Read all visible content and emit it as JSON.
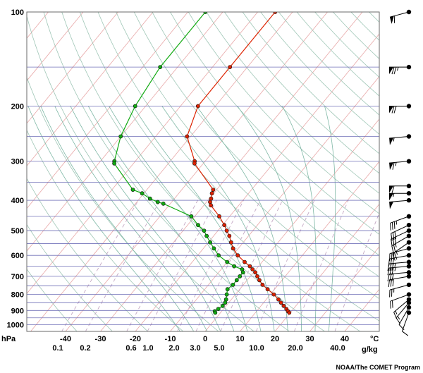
{
  "chart_data": {
    "type": "line",
    "title": "",
    "pressure_unit": "hPa",
    "temperature_unit": "°C",
    "mixing_ratio_unit": "g/kg",
    "credit": "NOAA/The COMET Program",
    "pressure_ticks": [
      100,
      200,
      300,
      400,
      500,
      600,
      700,
      800,
      900,
      1000
    ],
    "isobars": [
      100,
      150,
      200,
      250,
      300,
      350,
      400,
      450,
      500,
      550,
      600,
      650,
      700,
      750,
      800,
      850,
      900,
      950,
      1000
    ],
    "temperature_ticks": [
      -40,
      -30,
      -20,
      -10,
      0,
      10,
      20,
      30,
      40
    ],
    "mixing_ratio_ticks": [
      "0.1",
      "0.2",
      "0.6",
      "1.0",
      "2.0",
      "3.0",
      "5.0",
      "10.0",
      "20.0",
      "40.0"
    ],
    "colors": {
      "temperature": "#dd2200",
      "dewpoint": "#11aa11",
      "isobar": "#7070b8",
      "isotherm": "#e8a8a8",
      "dry_adiabat": "#9fc6b6",
      "moist_adiabat": "#7fb8a6",
      "mixing_ratio": "#c4a8c4"
    },
    "series": [
      {
        "name": "",
        "role": "temperature",
        "points": [
          {
            "p": 100,
            "t": -55
          },
          {
            "p": 150,
            "t": -55
          },
          {
            "p": 200,
            "t": -55
          },
          {
            "p": 250,
            "t": -51
          },
          {
            "p": 300,
            "t": -43
          },
          {
            "p": 305,
            "t": -42.5
          },
          {
            "p": 370,
            "t": -31
          },
          {
            "p": 380,
            "t": -30.5
          },
          {
            "p": 395,
            "t": -29.5
          },
          {
            "p": 405,
            "t": -29
          },
          {
            "p": 415,
            "t": -28
          },
          {
            "p": 450,
            "t": -23
          },
          {
            "p": 480,
            "t": -19.5
          },
          {
            "p": 500,
            "t": -17.5
          },
          {
            "p": 520,
            "t": -15.5
          },
          {
            "p": 545,
            "t": -13.5
          },
          {
            "p": 570,
            "t": -11.5
          },
          {
            "p": 600,
            "t": -8.5
          },
          {
            "p": 630,
            "t": -5
          },
          {
            "p": 650,
            "t": -2.5
          },
          {
            "p": 665,
            "t": -1
          },
          {
            "p": 680,
            "t": 0.5
          },
          {
            "p": 700,
            "t": 2
          },
          {
            "p": 720,
            "t": 3.5
          },
          {
            "p": 745,
            "t": 5.5
          },
          {
            "p": 770,
            "t": 8
          },
          {
            "p": 800,
            "t": 11
          },
          {
            "p": 830,
            "t": 13.5
          },
          {
            "p": 850,
            "t": 15
          },
          {
            "p": 870,
            "t": 16.5
          },
          {
            "p": 890,
            "t": 18
          },
          {
            "p": 905,
            "t": 19
          },
          {
            "p": 915,
            "t": 19.7
          }
        ]
      },
      {
        "name": "",
        "role": "dewpoint",
        "points": [
          {
            "p": 100,
            "t": -75
          },
          {
            "p": 150,
            "t": -75
          },
          {
            "p": 200,
            "t": -73
          },
          {
            "p": 250,
            "t": -70
          },
          {
            "p": 300,
            "t": -66
          },
          {
            "p": 305,
            "t": -65.5
          },
          {
            "p": 370,
            "t": -54
          },
          {
            "p": 380,
            "t": -50.5
          },
          {
            "p": 395,
            "t": -47
          },
          {
            "p": 405,
            "t": -44
          },
          {
            "p": 410,
            "t": -42
          },
          {
            "p": 450,
            "t": -31
          },
          {
            "p": 480,
            "t": -27
          },
          {
            "p": 500,
            "t": -24
          },
          {
            "p": 520,
            "t": -22
          },
          {
            "p": 545,
            "t": -19.5
          },
          {
            "p": 570,
            "t": -17
          },
          {
            "p": 600,
            "t": -14
          },
          {
            "p": 630,
            "t": -10
          },
          {
            "p": 650,
            "t": -7
          },
          {
            "p": 665,
            "t": -4
          },
          {
            "p": 680,
            "t": -3
          },
          {
            "p": 700,
            "t": -3
          },
          {
            "p": 720,
            "t": -3
          },
          {
            "p": 745,
            "t": -3
          },
          {
            "p": 770,
            "t": -3.5
          },
          {
            "p": 800,
            "t": -2.5
          },
          {
            "p": 830,
            "t": -1.5
          },
          {
            "p": 850,
            "t": -1
          },
          {
            "p": 870,
            "t": -1
          },
          {
            "p": 890,
            "t": -1.5
          },
          {
            "p": 905,
            "t": -2
          },
          {
            "p": 915,
            "t": -1.5
          }
        ]
      }
    ],
    "wind_barbs": [
      {
        "p": 100,
        "dir": 255,
        "kt": 60
      },
      {
        "p": 150,
        "dir": 270,
        "kt": 75
      },
      {
        "p": 200,
        "dir": 270,
        "kt": 70
      },
      {
        "p": 250,
        "dir": 265,
        "kt": 55
      },
      {
        "p": 300,
        "dir": 265,
        "kt": 65
      },
      {
        "p": 360,
        "dir": 270,
        "kt": 60
      },
      {
        "p": 380,
        "dir": 270,
        "kt": 55
      },
      {
        "p": 400,
        "dir": 265,
        "kt": 50
      },
      {
        "p": 450,
        "dir": 250,
        "kt": 35
      },
      {
        "p": 480,
        "dir": 245,
        "kt": 30
      },
      {
        "p": 500,
        "dir": 245,
        "kt": 30
      },
      {
        "p": 520,
        "dir": 240,
        "kt": 25
      },
      {
        "p": 545,
        "dir": 235,
        "kt": 25
      },
      {
        "p": 570,
        "dir": 255,
        "kt": 30
      },
      {
        "p": 600,
        "dir": 260,
        "kt": 30
      },
      {
        "p": 630,
        "dir": 265,
        "kt": 35
      },
      {
        "p": 650,
        "dir": 265,
        "kt": 35
      },
      {
        "p": 680,
        "dir": 265,
        "kt": 30
      },
      {
        "p": 700,
        "dir": 260,
        "kt": 30
      },
      {
        "p": 745,
        "dir": 255,
        "kt": 25
      },
      {
        "p": 800,
        "dir": 250,
        "kt": 20
      },
      {
        "p": 830,
        "dir": 230,
        "kt": 15
      },
      {
        "p": 850,
        "dir": 220,
        "kt": 15
      },
      {
        "p": 880,
        "dir": 210,
        "kt": 10
      },
      {
        "p": 915,
        "dir": 200,
        "kt": 10
      }
    ]
  }
}
